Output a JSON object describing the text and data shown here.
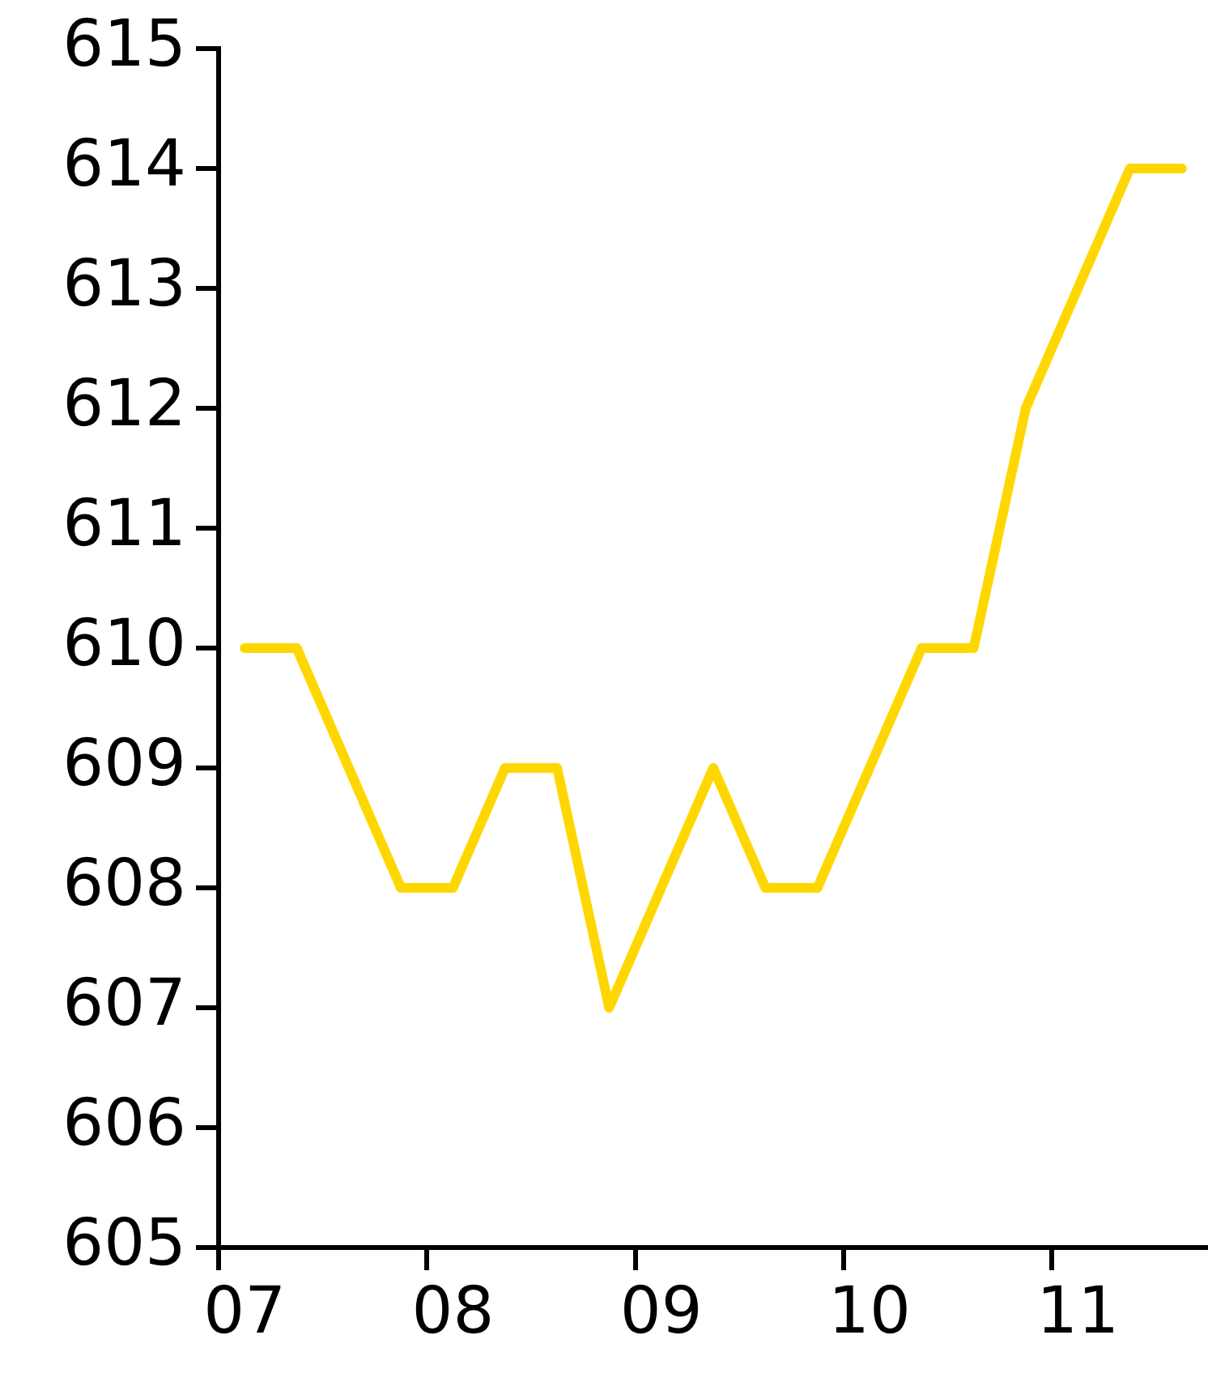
{
  "chart_data": {
    "type": "line",
    "categories": [
      "07",
      null,
      null,
      null,
      "08",
      null,
      null,
      null,
      "09",
      null,
      null,
      null,
      "10",
      null,
      null,
      null,
      "11",
      null,
      null
    ],
    "series": [
      {
        "color": "#ffd700",
        "values": [
          610,
          610,
          609,
          608,
          608,
          609,
          609,
          607,
          608,
          609,
          608,
          608,
          609,
          610,
          610,
          612,
          613,
          614,
          614
        ]
      }
    ],
    "ylim": [
      605,
      615
    ],
    "yticks": [
      605,
      606,
      607,
      608,
      609,
      610,
      611,
      612,
      613,
      614,
      615
    ],
    "grid": false,
    "legend": false,
    "marker": "none",
    "line_style": "solid"
  }
}
